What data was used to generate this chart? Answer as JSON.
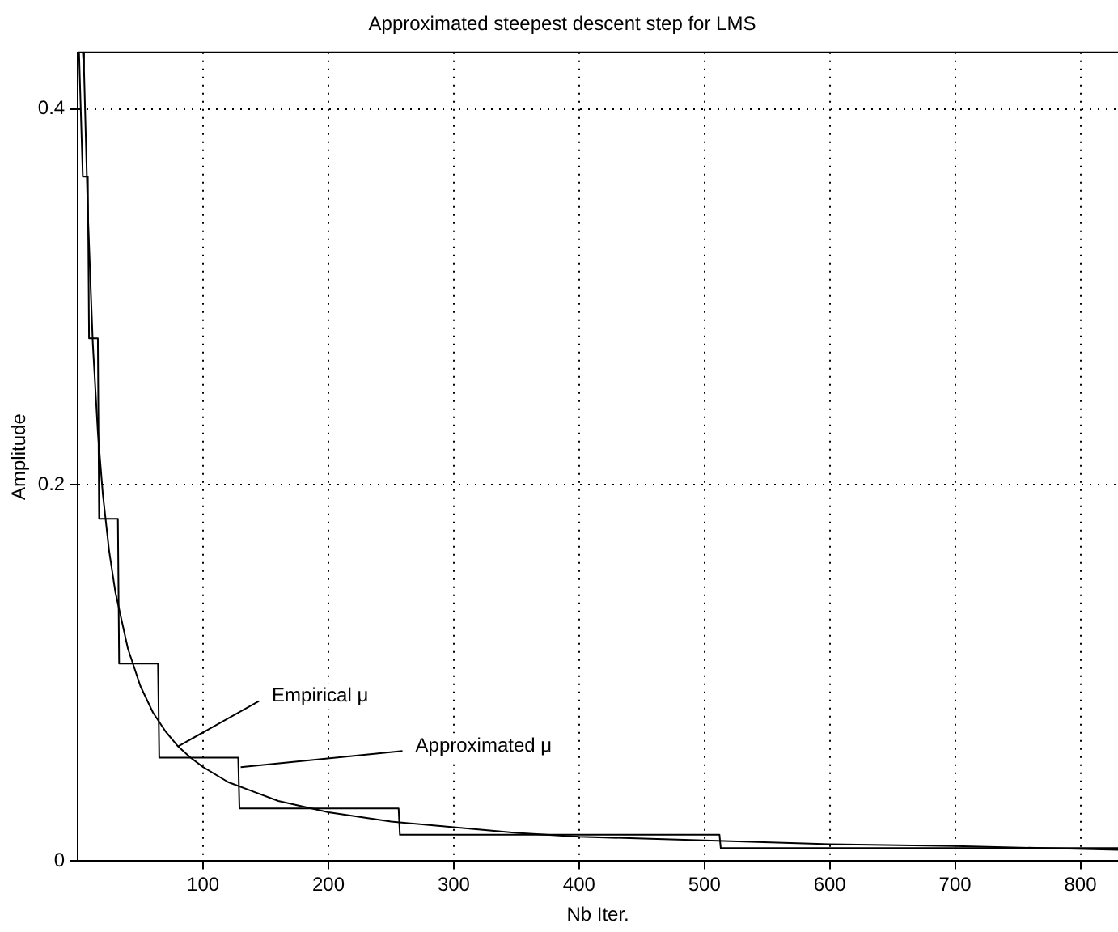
{
  "chart_data": {
    "type": "line",
    "title": "Approximated steepest descent step for LMS",
    "xlabel": "Nb Iter.",
    "ylabel": "Amplitude",
    "xlim": [
      0,
      830
    ],
    "xticks": [
      100,
      200,
      300,
      400,
      500,
      600,
      700,
      800
    ],
    "ylim": [
      0,
      0.43
    ],
    "yticks": [
      0,
      0.2,
      0.4
    ],
    "grid": true,
    "legend": false,
    "marker": "none",
    "line_style": "solid",
    "series": [
      {
        "color": "#000000",
        "x": [
          4,
          5,
          8,
          12,
          16,
          20,
          25,
          30,
          40,
          50,
          60,
          70,
          80,
          90,
          100,
          120,
          140,
          160,
          180,
          200,
          250,
          300,
          350,
          400,
          500,
          600,
          700,
          830
        ],
        "values": [
          0.43,
          0.42,
          0.345,
          0.275,
          0.228,
          0.195,
          0.165,
          0.143,
          0.113,
          0.093,
          0.079,
          0.069,
          0.061,
          0.055,
          0.05,
          0.042,
          0.037,
          0.032,
          0.029,
          0.026,
          0.021,
          0.018,
          0.015,
          0.013,
          0.011,
          0.009,
          0.008,
          0.006
        ]
      },
      {
        "color": "#000000",
        "x": [
          1,
          4,
          8,
          9,
          16,
          17,
          32,
          33,
          64,
          65,
          128,
          129,
          256,
          257,
          512,
          513,
          830
        ],
        "values": [
          0.43,
          0.364,
          0.364,
          0.278,
          0.278,
          0.182,
          0.182,
          0.105,
          0.105,
          0.055,
          0.055,
          0.028,
          0.028,
          0.014,
          0.014,
          0.007,
          0.007
        ]
      }
    ],
    "annotations": [
      {
        "text": "Empirical μ",
        "x": 80,
        "y": 0.061
      },
      {
        "text": "Approximated μ",
        "x": 130,
        "y": 0.05
      }
    ]
  }
}
